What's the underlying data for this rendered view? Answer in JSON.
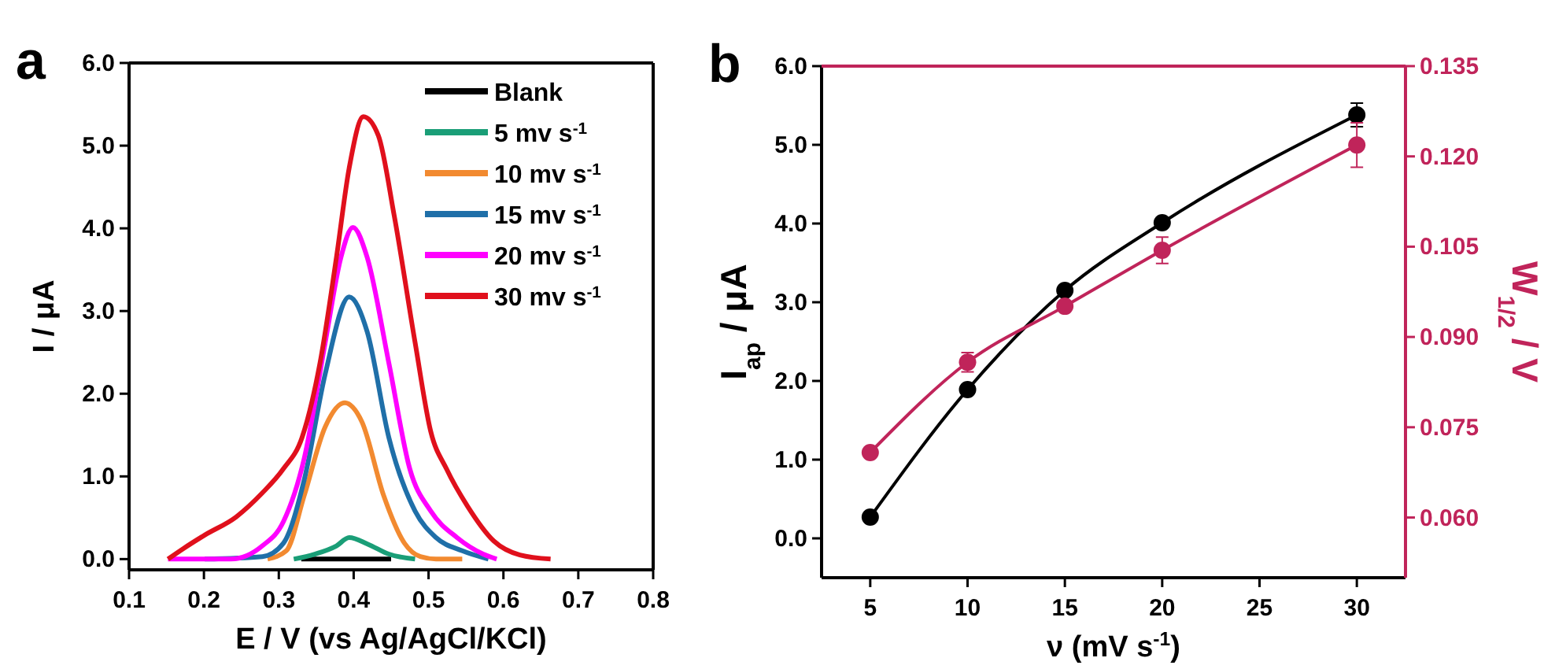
{
  "chart_data": [
    {
      "type": "line",
      "title": "a",
      "xlabel": "E / V (vs Ag/AgCl/KCl)",
      "ylabel": "I / μA",
      "xlim": [
        0.1,
        0.8
      ],
      "xticks": [
        0.1,
        0.2,
        0.3,
        0.4,
        0.5,
        0.6,
        0.7,
        0.8
      ],
      "ylim": [
        -0.13,
        6.0
      ],
      "yticks": [
        {
          "value": 0,
          "label": "0.0"
        },
        {
          "value": 1,
          "label": "1.0"
        },
        {
          "value": 2,
          "label": "2.0"
        },
        {
          "value": 3,
          "label": "3.0"
        },
        {
          "value": 4,
          "label": "4.0"
        },
        {
          "value": 5,
          "label": "5.0"
        },
        {
          "value": 6,
          "label": "6.0"
        }
      ],
      "legend": "top right",
      "grid": false,
      "series": [
        {
          "name": "Blank",
          "color": "#000000",
          "x": [
            0.33,
            0.39,
            0.45
          ],
          "values": [
            0,
            0,
            0
          ]
        },
        {
          "name": "5 mv s$^{-1}$",
          "color": "#1a9e77",
          "x": [
            0.32,
            0.348,
            0.377,
            0.394,
            0.419,
            0.447,
            0.482
          ],
          "values": [
            0,
            0.06,
            0.16,
            0.26,
            0.18,
            0.06,
            0
          ]
        },
        {
          "name": "10 mv s$^{-1}$",
          "color": "#f28a30",
          "x": [
            0.285,
            0.31,
            0.334,
            0.362,
            0.388,
            0.411,
            0.44,
            0.468,
            0.489,
            0.51,
            0.545
          ],
          "values": [
            0,
            0.1,
            0.77,
            1.6,
            1.89,
            1.66,
            0.77,
            0.19,
            0.03,
            0,
            0
          ]
        },
        {
          "name": "15 mv s$^{-1}$",
          "color": "#1f6fa8",
          "x": [
            0.201,
            0.278,
            0.306,
            0.334,
            0.362,
            0.394,
            0.418,
            0.447,
            0.482,
            0.51,
            0.545,
            0.58
          ],
          "values": [
            0,
            0.03,
            0.19,
            0.96,
            2.24,
            3.17,
            2.75,
            1.47,
            0.58,
            0.26,
            0.1,
            0
          ]
        },
        {
          "name": "20 mv s$^{-1}$",
          "color": "#ff00ff",
          "x": [
            0.152,
            0.236,
            0.278,
            0.306,
            0.334,
            0.362,
            0.383,
            0.399,
            0.418,
            0.447,
            0.475,
            0.503,
            0.538,
            0.573,
            0.591
          ],
          "values": [
            0,
            0,
            0.16,
            0.45,
            1.22,
            2.62,
            3.65,
            4.01,
            3.65,
            2.37,
            1.09,
            0.58,
            0.26,
            0.06,
            0
          ]
        },
        {
          "name": "30 mv s$^{-1}$",
          "color": "#e0101c",
          "x": [
            0.152,
            0.173,
            0.201,
            0.243,
            0.278,
            0.306,
            0.331,
            0.355,
            0.377,
            0.394,
            0.413,
            0.433,
            0.454,
            0.482,
            0.503,
            0.524,
            0.552,
            0.587,
            0.622,
            0.663
          ],
          "values": [
            0,
            0.13,
            0.29,
            0.51,
            0.8,
            1.09,
            1.47,
            2.37,
            3.65,
            4.73,
            5.35,
            5.12,
            4.16,
            2.62,
            1.54,
            1.09,
            0.64,
            0.22,
            0.05,
            0
          ]
        }
      ]
    },
    {
      "type": "line",
      "title": "b",
      "xlabel": "ν (mV s$^{-1}$)",
      "ylabel": "I$_{ap}$ / μA",
      "y2label": "W$_{1/2}$ / V",
      "xlim": [
        2.5,
        32.5
      ],
      "xticks": [
        5,
        10,
        15,
        20,
        25,
        30
      ],
      "ylim": [
        -0.5,
        6.0
      ],
      "yticks": [
        {
          "value": 0,
          "label": "0.0"
        },
        {
          "value": 1,
          "label": "1.0"
        },
        {
          "value": 2,
          "label": "2.0"
        },
        {
          "value": 3,
          "label": "3.0"
        },
        {
          "value": 4,
          "label": "4.0"
        },
        {
          "value": 5,
          "label": "5.0"
        },
        {
          "value": 6,
          "label": "6.0"
        }
      ],
      "y2lim": [
        0.05,
        0.135
      ],
      "y2ticks": [
        {
          "value": 0.06,
          "label": "0.060"
        },
        {
          "value": 0.075,
          "label": "0.075"
        },
        {
          "value": 0.09,
          "label": "0.090"
        },
        {
          "value": 0.105,
          "label": "0.105"
        },
        {
          "value": 0.12,
          "label": "0.120"
        },
        {
          "value": 0.135,
          "label": "0.135"
        }
      ],
      "marker": "circle",
      "grid": false,
      "series": [
        {
          "color": "#000000",
          "x": [
            5,
            10,
            15,
            20,
            30
          ],
          "values": [
            0.27,
            1.89,
            3.15,
            4.01,
            5.38
          ],
          "errors": [
            null,
            null,
            null,
            null,
            0.15
          ]
        },
        {
          "color": "#c0245a",
          "axis": "y2",
          "x": [
            5,
            10,
            15,
            20,
            30
          ],
          "values": [
            0.0708,
            0.0858,
            0.0951,
            0.1044,
            0.1219
          ],
          "errors": [
            null,
            0.0016,
            null,
            0.0022,
            0.0037
          ]
        }
      ]
    }
  ]
}
